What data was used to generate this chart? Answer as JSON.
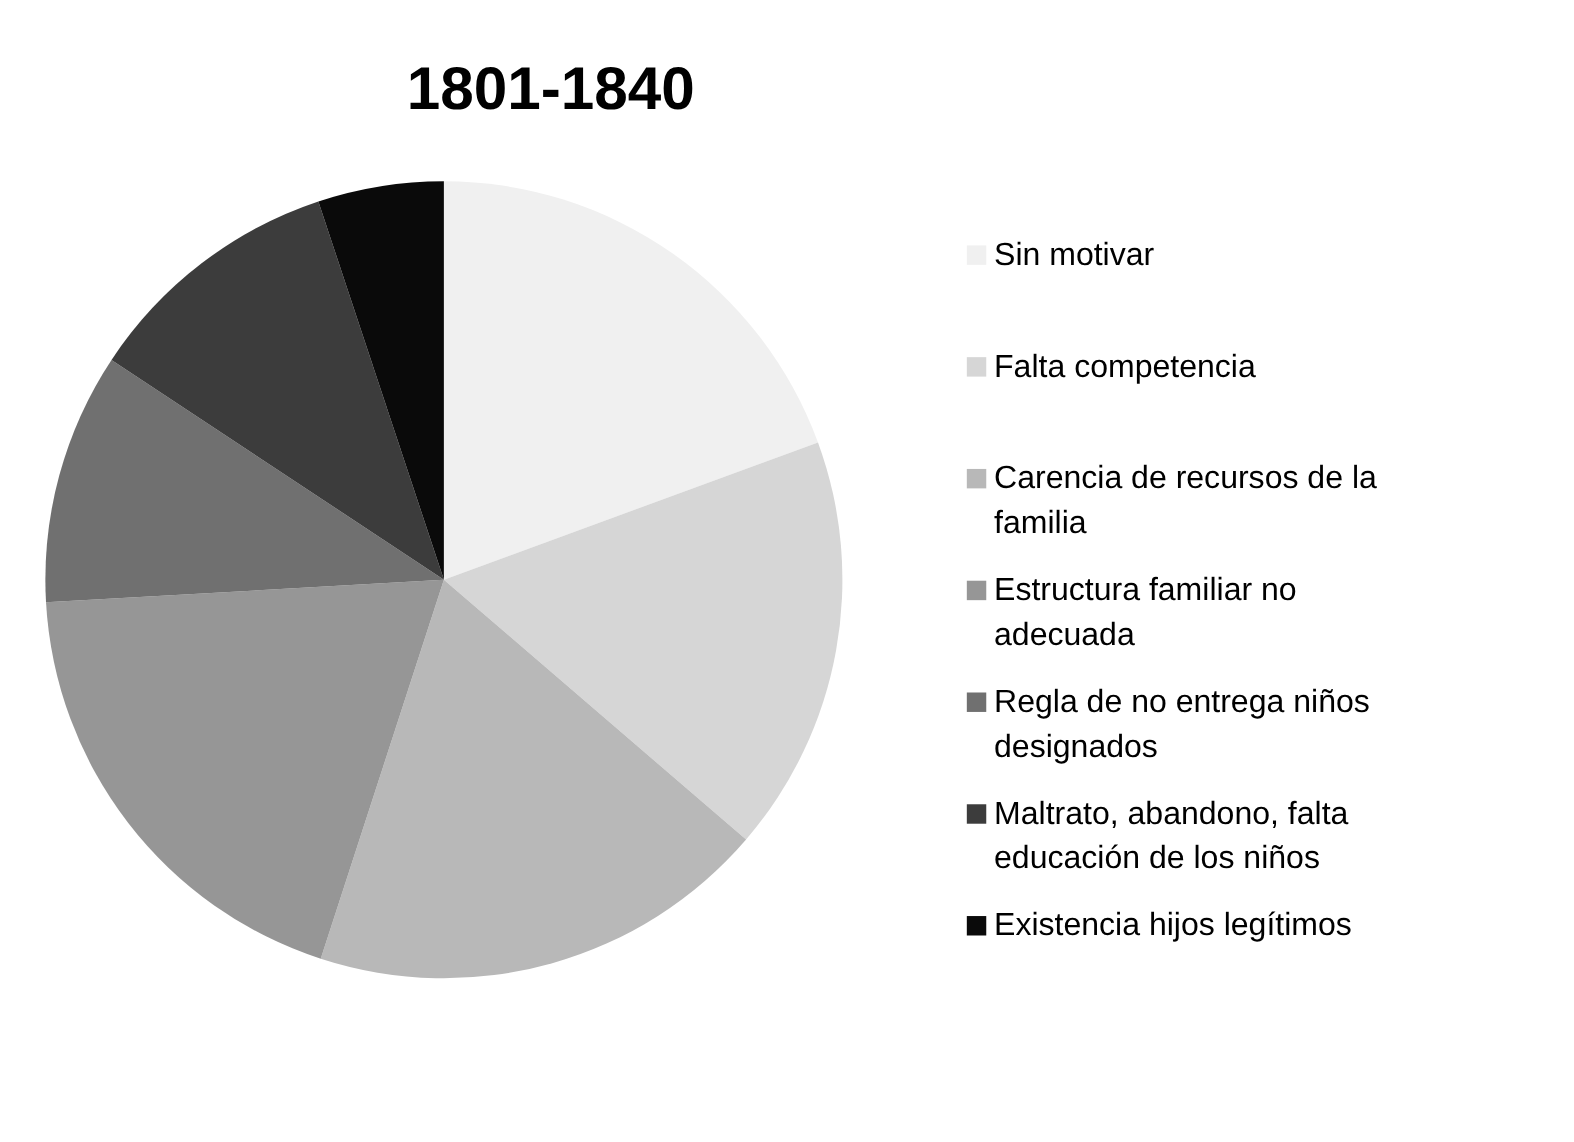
{
  "chart_data": {
    "type": "pie",
    "title": "1801-1840",
    "categories": [
      "Sin motivar",
      "Falta competencia",
      "Carencia de recursos de la familia",
      "Estructura familiar no adecuada",
      "Regla de no entrega niños designados",
      "Maltrato, abandono, falta educación de los niños",
      "Existencia hijos legítimos"
    ],
    "values": [
      19.4,
      16.9,
      18.7,
      19.1,
      10.2,
      10.6,
      5.1
    ],
    "colors": [
      "#f0f0f0",
      "#d6d6d6",
      "#b8b8b8",
      "#969696",
      "#707070",
      "#3c3c3c",
      "#0a0a0a"
    ],
    "legend": "right"
  }
}
